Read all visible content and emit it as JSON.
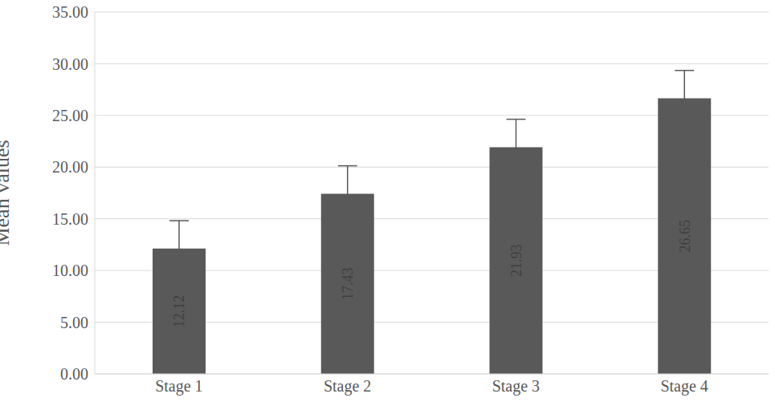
{
  "chart_data": {
    "type": "bar",
    "categories": [
      "Stage 1",
      "Stage 2",
      "Stage 3",
      "Stage 4"
    ],
    "values": [
      12.12,
      17.43,
      21.93,
      26.65
    ],
    "errors": [
      2.7,
      2.7,
      2.7,
      2.7
    ],
    "color": "#595959",
    "y_label": "Mean values",
    "ylim": [
      0,
      35
    ],
    "yticks": [
      {
        "value": 0,
        "label": "0.00"
      },
      {
        "value": 5,
        "label": "5.00"
      },
      {
        "value": 10,
        "label": "10.00"
      },
      {
        "value": 15,
        "label": "15.00"
      },
      {
        "value": 20,
        "label": "20.00"
      },
      {
        "value": 25,
        "label": "25.00"
      },
      {
        "value": 30,
        "label": "30.00"
      },
      {
        "value": 35,
        "label": "35.00"
      }
    ],
    "grid": true,
    "data_labels": true
  }
}
